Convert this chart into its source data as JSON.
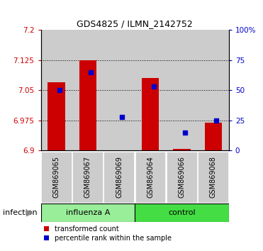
{
  "title": "GDS4825 / ILMN_2142752",
  "samples": [
    "GSM869065",
    "GSM869067",
    "GSM869069",
    "GSM869064",
    "GSM869066",
    "GSM869068"
  ],
  "red_values": [
    7.07,
    7.125,
    6.9,
    7.08,
    6.905,
    6.97
  ],
  "blue_percentiles": [
    50,
    65,
    28,
    53,
    15,
    25
  ],
  "ylim_left": [
    6.9,
    7.2
  ],
  "ylim_right": [
    0,
    100
  ],
  "yticks_left": [
    6.9,
    6.975,
    7.05,
    7.125,
    7.2
  ],
  "yticks_right": [
    0,
    25,
    50,
    75,
    100
  ],
  "ytick_labels_right": [
    "0",
    "25",
    "50",
    "75",
    "100%"
  ],
  "hgrid_values": [
    6.975,
    7.05,
    7.125
  ],
  "base_value": 6.9,
  "red_color": "#CC0000",
  "blue_color": "#0000CC",
  "bar_width": 0.55,
  "col_bg": "#cccccc",
  "influenza_color": "#99ee99",
  "control_color": "#44dd44",
  "group_label": "infection",
  "legend_red": "transformed count",
  "legend_blue": "percentile rank within the sample",
  "title_fontsize": 9,
  "tick_fontsize": 7.5,
  "sample_fontsize": 7,
  "legend_fontsize": 7
}
